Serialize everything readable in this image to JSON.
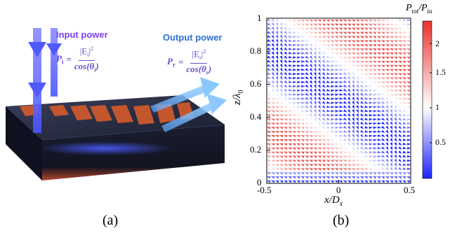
{
  "panel_a": {
    "panel_label": "(a)",
    "input_label": "Input power",
    "output_label": "Output power",
    "input_eq": {
      "lhs": "P",
      "lhs_sub": "i",
      "num": "|E",
      "num_sub": "i",
      "num_tail": "|",
      "num_sup": "2",
      "den": "cos(θ",
      "den_sub": "i",
      "den_tail": ")"
    },
    "output_eq": {
      "lhs": "P",
      "lhs_sub": "r",
      "num": "|E",
      "num_sub": "r",
      "num_tail": "|",
      "num_sup": "2",
      "den": "cos(θ",
      "den_sub": "r",
      "den_tail": ")"
    },
    "colors": {
      "input_text": "#7b3ff2",
      "output_text": "#2b6fd6",
      "eq_text": "#6a4fcf",
      "beam": "#6f7bff",
      "out_beam": "#6fb9ff",
      "grating": "#c8502a"
    }
  },
  "panel_b": {
    "panel_label": "(b)",
    "colorbar_title": {
      "main": "P",
      "sub1": "tot",
      "sep": "/",
      "main2": "P",
      "sub2": "in"
    },
    "colorbar_ticks": [
      "2",
      "1.5",
      "1",
      "0.5"
    ],
    "colors": {
      "high": "#e8332e",
      "mid": "#ffffff",
      "low": "#1c24ff"
    }
  },
  "chart_data": {
    "type": "heatmap",
    "title": "",
    "xlabel": "x/D_x",
    "ylabel": "z/λ_0",
    "xlim": [
      -0.5,
      0.5
    ],
    "ylim": [
      0,
      1
    ],
    "x_ticks": [
      "-0.5",
      "0",
      "0.5"
    ],
    "y_ticks": [
      "0",
      "0.2",
      "0.4",
      "0.6",
      "0.8",
      "1"
    ],
    "colorbar_range": [
      0,
      2.2
    ],
    "colorbar_ticks": [
      0.5,
      1,
      1.5,
      2
    ],
    "description_of_field": "diagonal stripes of high (red, ~2) and low (blue, ~0.5) normalized power flow with arrow directions"
  }
}
